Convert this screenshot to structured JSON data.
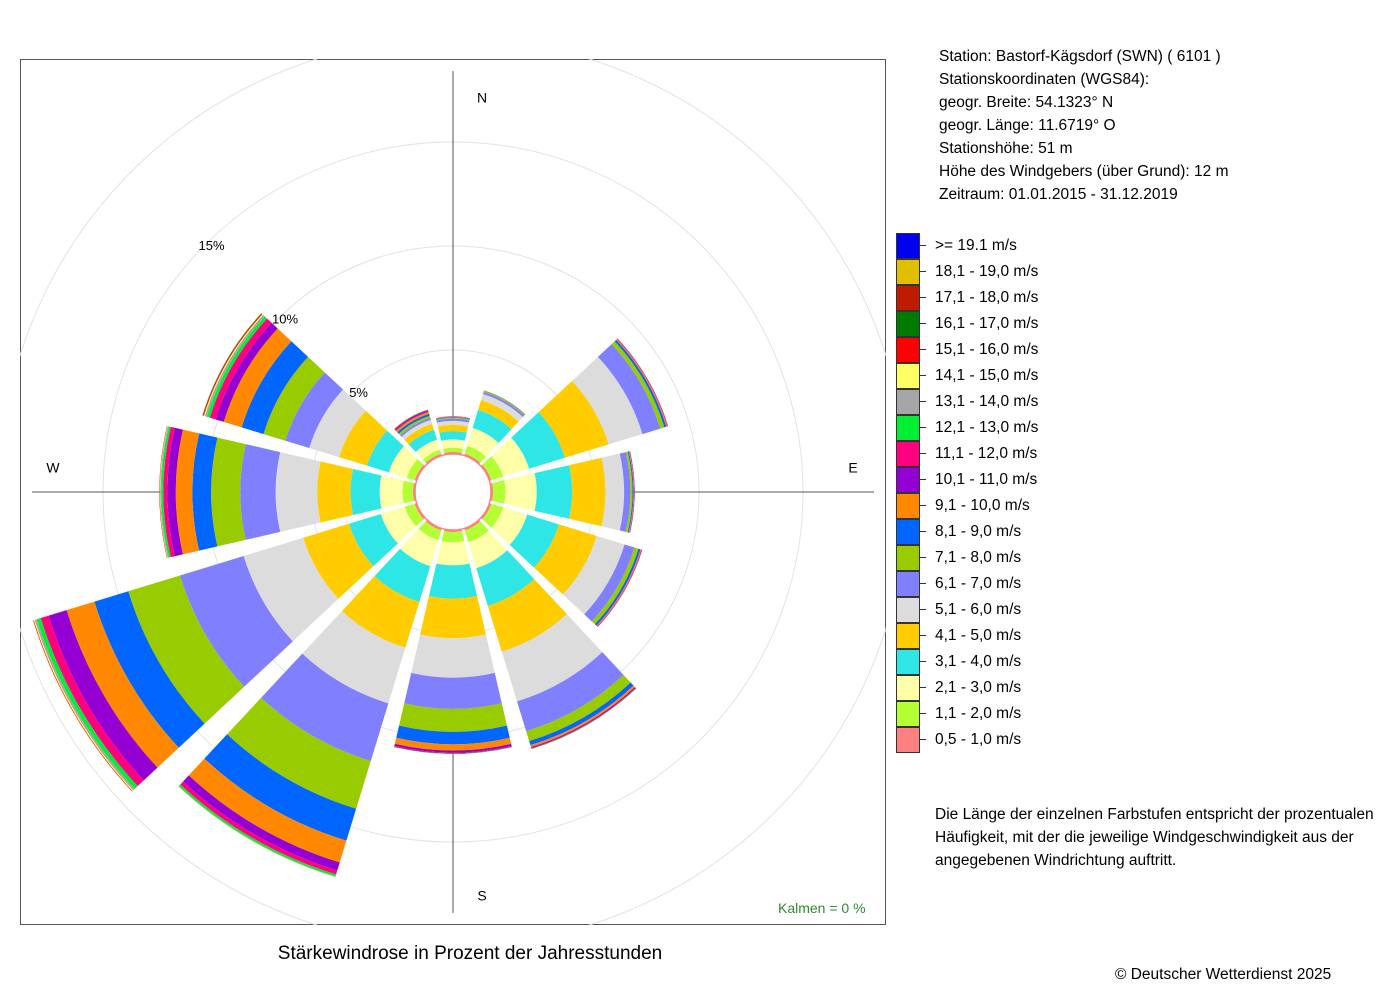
{
  "station": {
    "line1": "Station:  Bastorf-Kägsdorf (SWN)  ( 6101 )",
    "line2": "Stationskoordinaten (WGS84):",
    "line3": "geogr. Breite: 54.1323° N",
    "line4": "geogr. Länge: 11.6719° O",
    "line5": "Stationshöhe: 51 m",
    "line6": "Höhe des Windgebers (über Grund): 12 m",
    "line7": "Zeitraum: 01.01.2015 - 31.12.2019"
  },
  "legend": {
    "items": [
      {
        "label": ">= 19.1 m/s",
        "color": "#0000ee"
      },
      {
        "label": "18,1 - 19,0 m/s",
        "color": "#dfbf00"
      },
      {
        "label": "17,1 - 18,0 m/s",
        "color": "#c01a00"
      },
      {
        "label": "16,1 - 17,0 m/s",
        "color": "#007a00"
      },
      {
        "label": "15,1 - 16,0 m/s",
        "color": "#ff0000"
      },
      {
        "label": "14,1 - 15,0 m/s",
        "color": "#ffff66"
      },
      {
        "label": "13,1 - 14,0 m/s",
        "color": "#a6a6a6"
      },
      {
        "label": "12,1 - 13,0 m/s",
        "color": "#00ee33"
      },
      {
        "label": "11,1 - 12,0 m/s",
        "color": "#ff0080"
      },
      {
        "label": "10,1 - 11,0 m/s",
        "color": "#9400d3"
      },
      {
        "label": "9,1 - 10,0 m/s",
        "color": "#ff8800"
      },
      {
        "label": "8,1 - 9,0 m/s",
        "color": "#0066ff"
      },
      {
        "label": "7,1 - 8,0 m/s",
        "color": "#99cc00"
      },
      {
        "label": "6,1 - 7,0 m/s",
        "color": "#8080ff"
      },
      {
        "label": "5,1 - 6,0 m/s",
        "color": "#dcdcdc"
      },
      {
        "label": "4,1 - 5,0 m/s",
        "color": "#ffcc00"
      },
      {
        "label": "3,1 - 4,0 m/s",
        "color": "#2ee6e6"
      },
      {
        "label": "2,1 - 3,0 m/s",
        "color": "#ffffaa"
      },
      {
        "label": "1,1 - 2,0 m/s",
        "color": "#b3ff33"
      },
      {
        "label": "0,5 - 1,0 m/s",
        "color": "#ff8080"
      }
    ]
  },
  "note": "Die Länge der einzelnen Farbstufen entspricht der prozentualen Häufigkeit, mit der die jeweilige Windgeschwindigkeit aus der angegebenen Windrichtung auftritt.",
  "calms": "Kalmen  =  0 %",
  "copyright": "© Deutscher Wetterdienst  2025",
  "chart_data": {
    "type": "windrose",
    "title": "Stärkewindrose in Prozent der Jahresstunden",
    "directions": [
      "N",
      "E",
      "S",
      "W"
    ],
    "ring_labels": [
      "5%",
      "10%",
      "15%"
    ],
    "rings": [
      5,
      10,
      15,
      20
    ],
    "speed_classes": [
      "0,5 - 1,0 m/s",
      "1,1 - 2,0 m/s",
      "2,1 - 3,0 m/s",
      "3,1 - 4,0 m/s",
      "4,1 - 5,0 m/s",
      "5,1 - 6,0 m/s",
      "6,1 - 7,0 m/s",
      "7,1 - 8,0 m/s",
      "8,1 - 9,0 m/s",
      "9,1 - 10,0 m/s",
      "10,1 - 11,0 m/s",
      "11,1 - 12,0 m/s",
      "12,1 - 13,0 m/s",
      "13,1 - 14,0 m/s",
      "14,1 - 15,0 m/s",
      "15,1 - 16,0 m/s",
      "16,1 - 17,0 m/s",
      "17,1 - 18,0 m/s",
      "18,1 - 19,0 m/s",
      ">= 19.1 m/s"
    ],
    "sectors": [
      {
        "direction": 0,
        "values": [
          0.1,
          0.2,
          0.4,
          0.4,
          0.3,
          0.2,
          0.1,
          0.05,
          0.03,
          0.02,
          0.01,
          0.01,
          0,
          0,
          0,
          0,
          0,
          0,
          0,
          0
        ]
      },
      {
        "direction": 30,
        "values": [
          0.1,
          0.4,
          0.9,
          0.9,
          0.5,
          0.3,
          0.1,
          0.05,
          0.02,
          0.01,
          0,
          0,
          0,
          0,
          0,
          0,
          0,
          0,
          0,
          0
        ]
      },
      {
        "direction": 60,
        "values": [
          0.1,
          0.6,
          1.3,
          1.8,
          2.2,
          1.7,
          0.9,
          0.2,
          0.1,
          0.05,
          0.02,
          0.02,
          0,
          0,
          0,
          0,
          0,
          0,
          0,
          0
        ]
      },
      {
        "direction": 90,
        "values": [
          0.1,
          0.6,
          1.5,
          1.7,
          1.6,
          0.9,
          0.3,
          0.1,
          0.05,
          0.03,
          0.02,
          0.01,
          0,
          0,
          0,
          0,
          0,
          0,
          0,
          0
        ]
      },
      {
        "direction": 120,
        "values": [
          0.1,
          0.6,
          1.2,
          1.6,
          1.9,
          1.4,
          0.5,
          0.2,
          0.1,
          0.05,
          0.02,
          0.02,
          0,
          0,
          0,
          0,
          0,
          0,
          0,
          0
        ]
      },
      {
        "direction": 150,
        "values": [
          0.1,
          0.6,
          1.3,
          1.9,
          2.3,
          2.5,
          1.5,
          0.5,
          0.2,
          0.1,
          0.05,
          0.03,
          0.02,
          0,
          0,
          0,
          0,
          0,
          0,
          0
        ]
      },
      {
        "direction": 180,
        "values": [
          0.1,
          0.5,
          1.1,
          1.6,
          1.9,
          1.9,
          1.5,
          1.1,
          0.6,
          0.3,
          0.1,
          0.05,
          0.02,
          0,
          0,
          0,
          0,
          0,
          0,
          0
        ]
      },
      {
        "direction": 210,
        "values": [
          0.1,
          0.5,
          1.3,
          1.8,
          2.3,
          2.8,
          2.9,
          2.4,
          1.6,
          1.1,
          0.4,
          0.2,
          0.1,
          0.03,
          0.02,
          0,
          0,
          0,
          0,
          0
        ]
      },
      {
        "direction": 240,
        "values": [
          0.1,
          0.5,
          1.2,
          1.6,
          2.3,
          3.0,
          3.2,
          2.6,
          1.7,
          1.4,
          0.9,
          0.4,
          0.2,
          0.1,
          0.05,
          0.03,
          0,
          0,
          0,
          0
        ]
      },
      {
        "direction": 270,
        "values": [
          0.1,
          0.5,
          1.1,
          1.4,
          1.6,
          2.0,
          1.7,
          1.4,
          0.9,
          0.8,
          0.4,
          0.2,
          0.1,
          0.05,
          0.02,
          0.02,
          0,
          0,
          0,
          0
        ]
      },
      {
        "direction": 300,
        "values": [
          0.1,
          0.4,
          0.9,
          1.1,
          1.4,
          1.5,
          1.2,
          1.1,
          1.1,
          0.9,
          0.4,
          0.3,
          0.15,
          0.1,
          0.05,
          0.03,
          0.02,
          0.02,
          0,
          0
        ]
      },
      {
        "direction": 330,
        "values": [
          0.1,
          0.2,
          0.5,
          0.5,
          0.3,
          0.2,
          0.1,
          0.1,
          0.1,
          0.1,
          0.05,
          0.05,
          0.02,
          0,
          0,
          0,
          0,
          0,
          0,
          0
        ]
      }
    ]
  }
}
